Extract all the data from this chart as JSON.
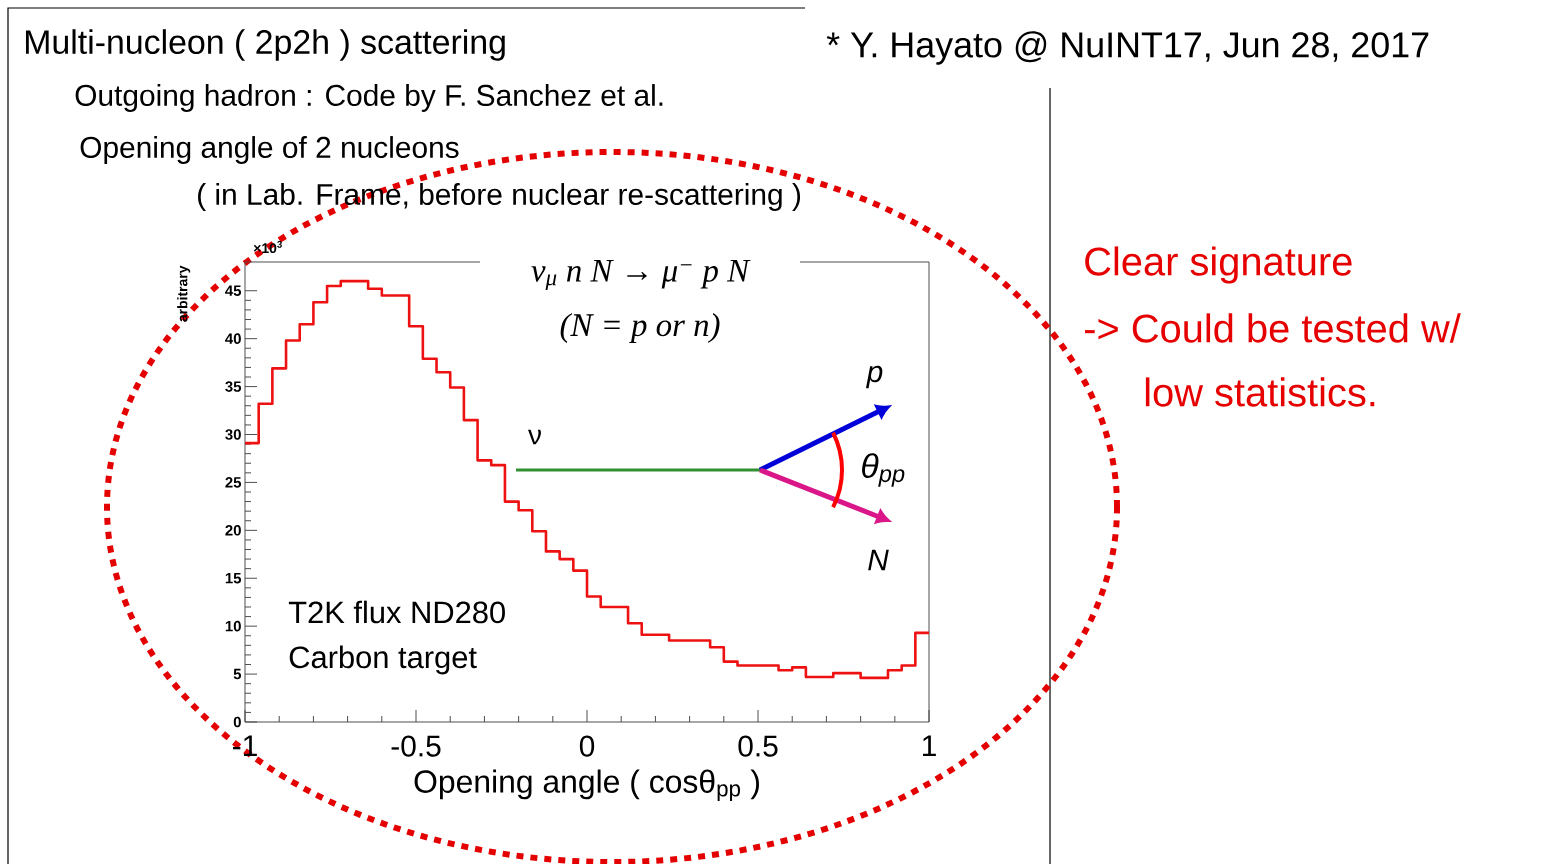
{
  "chart_data": {
    "type": "histogram",
    "title": "Multi-nucleon ( 2p2h ) scattering",
    "subtitle": "Outgoing hadron : Code by F. Sanchez et al.",
    "xlabel": "Opening angle ( cosθ$_{pp}$ )",
    "ylabel": "arbitrary",
    "color": "#ee1111",
    "bins": [
      -1,
      -0.96,
      -0.92,
      -0.88,
      -0.84,
      -0.8,
      -0.76,
      -0.72,
      -0.68,
      -0.64,
      -0.6,
      -0.56,
      -0.52,
      -0.48,
      -0.44,
      -0.4,
      -0.36,
      -0.32,
      -0.28,
      -0.24,
      -0.2,
      -0.16,
      -0.12,
      -0.08,
      -0.04,
      0,
      0.04,
      0.08,
      0.12,
      0.16,
      0.2,
      0.24,
      0.28,
      0.32,
      0.36,
      0.4,
      0.44,
      0.48,
      0.52,
      0.56,
      0.6,
      0.64,
      0.68,
      0.72,
      0.76,
      0.8,
      0.84,
      0.88,
      0.92,
      0.96,
      1
    ],
    "values": [
      29.1,
      33.2,
      36.9,
      39.8,
      41.5,
      43.8,
      45.5,
      46.0,
      46.0,
      45.2,
      44.5,
      44.5,
      41.3,
      37.9,
      36.5,
      34.9,
      31.5,
      27.3,
      26.8,
      23.0,
      22.1,
      19.9,
      17.8,
      17.0,
      15.8,
      13.1,
      12.0,
      12.0,
      10.3,
      9.1,
      9.1,
      8.5,
      8.5,
      8.5,
      7.8,
      6.3,
      5.9,
      5.9,
      5.9,
      5.4,
      5.7,
      4.7,
      4.7,
      5.1,
      5.1,
      4.6,
      4.6,
      5.4,
      5.9,
      9.3
    ],
    "xlim": [
      -1,
      1
    ],
    "ylim": [
      0,
      48
    ],
    "xticks": [
      -1,
      -0.5,
      0,
      0.5,
      1
    ],
    "yticks": [
      0,
      5,
      10,
      15,
      20,
      25,
      30,
      35,
      40,
      45
    ],
    "annotations": [
      "Opening angle of 2 nucleons",
      "( in Lab. Frame, before nuclear re-scattering )",
      "* Y. Hayato @ NuINT17, Jun 28, 2017",
      "ν$_{μ}$ n N → μ$^{−}$ p N",
      "(N  =  p or n)",
      "T2K flux ND280",
      "Carbon target",
      "Clear signature",
      "-> Could be tested w/",
      "low statistics.",
      "ν",
      "p",
      "N",
      "θ$_{pp}$",
      "×10$^{3}$"
    ]
  }
}
